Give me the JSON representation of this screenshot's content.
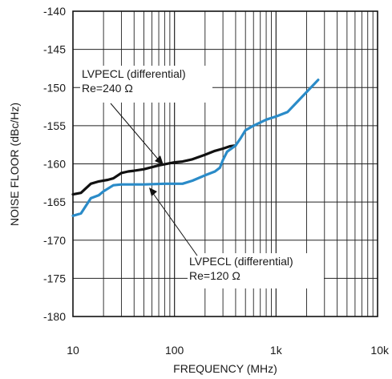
{
  "chart_data": {
    "type": "line",
    "xlabel": "FREQUENCY (MHz)",
    "ylabel": "NOISE FLOOR (dBc/Hz)",
    "x_scale": "log",
    "xlim": [
      10,
      10000
    ],
    "ylim": [
      -180,
      -140
    ],
    "x_ticks": [
      {
        "value": 10,
        "label": "10"
      },
      {
        "value": 100,
        "label": "100"
      },
      {
        "value": 1000,
        "label": "1k"
      },
      {
        "value": 10000,
        "label": "10k"
      }
    ],
    "y_ticks": [
      {
        "value": -140,
        "label": "-140"
      },
      {
        "value": -145,
        "label": "-145"
      },
      {
        "value": -150,
        "label": "-150"
      },
      {
        "value": -155,
        "label": "-155"
      },
      {
        "value": -160,
        "label": "-160"
      },
      {
        "value": -165,
        "label": "-165"
      },
      {
        "value": -170,
        "label": "-170"
      },
      {
        "value": -175,
        "label": "-175"
      },
      {
        "value": -180,
        "label": "-180"
      }
    ],
    "grid": true,
    "series": [
      {
        "color": "#111111",
        "points": [
          [
            10,
            -164
          ],
          [
            12,
            -163.8
          ],
          [
            15,
            -162.6
          ],
          [
            18,
            -162.3
          ],
          [
            22,
            -162.1
          ],
          [
            25,
            -161.9
          ],
          [
            30,
            -161.2
          ],
          [
            35,
            -161.0
          ],
          [
            40,
            -160.9
          ],
          [
            50,
            -160.7
          ],
          [
            70,
            -160.2
          ],
          [
            100,
            -159.8
          ],
          [
            120,
            -159.7
          ],
          [
            150,
            -159.4
          ],
          [
            200,
            -158.8
          ],
          [
            250,
            -158.3
          ],
          [
            300,
            -158.0
          ],
          [
            350,
            -157.7
          ],
          [
            400,
            -157.6
          ]
        ]
      },
      {
        "color": "#2a8bc8",
        "points": [
          [
            10,
            -166.8
          ],
          [
            12,
            -166.5
          ],
          [
            15,
            -164.5
          ],
          [
            18,
            -164.1
          ],
          [
            20,
            -163.6
          ],
          [
            25,
            -162.8
          ],
          [
            30,
            -162.7
          ],
          [
            50,
            -162.7
          ],
          [
            80,
            -162.6
          ],
          [
            120,
            -162.6
          ],
          [
            150,
            -162.2
          ],
          [
            200,
            -161.5
          ],
          [
            250,
            -161.0
          ],
          [
            280,
            -160.5
          ],
          [
            300,
            -159.5
          ],
          [
            330,
            -158.4
          ],
          [
            400,
            -157.6
          ],
          [
            450,
            -156.6
          ],
          [
            500,
            -155.6
          ],
          [
            600,
            -155.0
          ],
          [
            800,
            -154.2
          ],
          [
            1000,
            -153.8
          ],
          [
            1300,
            -153.2
          ],
          [
            2600,
            -149.0
          ]
        ]
      }
    ],
    "annotations": [
      {
        "lines": [
          "LVPECL (differential)",
          "Re=240 Ω"
        ],
        "series_index": 0
      },
      {
        "lines": [
          "LVPECL (differential)",
          "Re=120 Ω"
        ],
        "series_index": 1
      }
    ]
  }
}
